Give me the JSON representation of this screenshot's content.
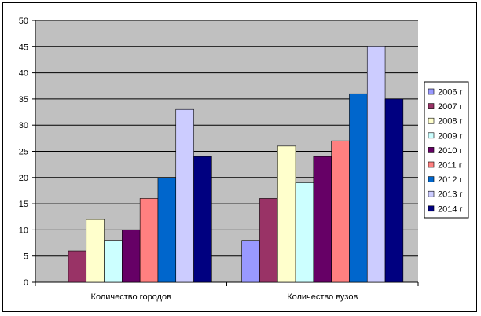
{
  "chart_data": {
    "type": "bar",
    "title": "",
    "xlabel": "",
    "ylabel": "",
    "categories": [
      "Количество городов",
      "Количество вузов"
    ],
    "series": [
      {
        "name": "2006 г",
        "color": "#9999FF",
        "values": [
          0,
          8
        ]
      },
      {
        "name": "2007 г",
        "color": "#993366",
        "values": [
          6,
          16
        ]
      },
      {
        "name": "2008 г",
        "color": "#FFFFCC",
        "values": [
          12,
          26
        ]
      },
      {
        "name": "2009 г",
        "color": "#CCFFFF",
        "values": [
          8,
          19
        ]
      },
      {
        "name": "2010 г",
        "color": "#660066",
        "values": [
          10,
          24
        ]
      },
      {
        "name": "2011 г",
        "color": "#FF8080",
        "values": [
          16,
          27
        ]
      },
      {
        "name": "2012 г",
        "color": "#0066CC",
        "values": [
          20,
          36
        ]
      },
      {
        "name": "2013 г",
        "color": "#CCCCFF",
        "values": [
          33,
          45
        ]
      },
      {
        "name": "2014 г",
        "color": "#000080",
        "values": [
          24,
          35
        ]
      }
    ],
    "ylim": [
      0,
      50
    ],
    "yticks": [
      0,
      5,
      10,
      15,
      20,
      25,
      30,
      35,
      40,
      45,
      50
    ],
    "grid": true,
    "plot_background": "#C0C0C0",
    "legend_position": "right"
  }
}
